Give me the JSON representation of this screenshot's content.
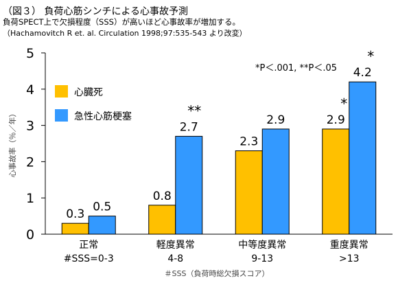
{
  "header": {
    "title": "（図３） 負荷心筋シンチによる心事故予測",
    "subtitle": "負荷SPECT上で欠損程度（SSS）が高いほど心事故率が増加する。",
    "citation": "（Hachamovitch R et. al. Circulation 1998;97:535-543 より改変）"
  },
  "chart_data": {
    "type": "bar",
    "categories": [
      {
        "name": "正常",
        "sub": "#SSS=0-3"
      },
      {
        "name": "軽度異常",
        "sub": "4-8"
      },
      {
        "name": "中等度異常",
        "sub": "9-13"
      },
      {
        "name": "重度異常",
        "sub": ">13"
      }
    ],
    "series": [
      {
        "name": "心臓死",
        "color": "#FFC000",
        "values": [
          0.3,
          0.8,
          2.3,
          2.9
        ],
        "marks": [
          "",
          "",
          "",
          "*"
        ]
      },
      {
        "name": "急性心筋梗塞",
        "color": "#3399FF",
        "values": [
          0.5,
          2.7,
          2.9,
          4.2
        ],
        "marks": [
          "",
          "**",
          "",
          "*"
        ]
      }
    ],
    "ylabel": "心事故率（％／年）",
    "xlabel": "＃SSS（負荷時総欠損スコア）",
    "ylim": [
      0,
      5
    ],
    "yticks": [
      0,
      1,
      2,
      3,
      4,
      5
    ],
    "annotation": "*P＜.001, **P＜.05",
    "legend_position": "top-left",
    "grid": false
  }
}
